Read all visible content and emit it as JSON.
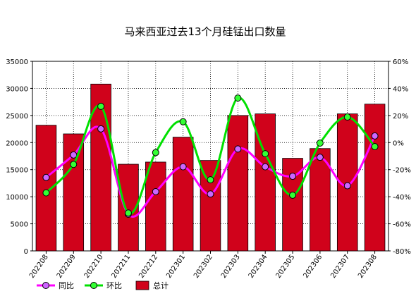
{
  "chart_data": {
    "type": "bar",
    "title": "马来西亚过去13个月硅锰出口数量",
    "categories": [
      "202208",
      "202209",
      "202210",
      "202211",
      "202212",
      "202301",
      "202302",
      "202303",
      "202304",
      "202305",
      "202306",
      "202307",
      "202308"
    ],
    "y_left": {
      "min": 0,
      "max": 35000,
      "step": 5000
    },
    "y_right": {
      "min": -80,
      "max": 80,
      "step": 20,
      "unit": "%"
    },
    "grid": true,
    "legend_position": "bottom-left",
    "series": [
      {
        "name": "总计",
        "kind": "bar",
        "axis": "left",
        "color": "#d0021b",
        "values": [
          23200,
          21600,
          30800,
          16000,
          16400,
          21000,
          16700,
          25000,
          25300,
          17100,
          18900,
          25300,
          27100
        ]
      },
      {
        "name": "同比",
        "kind": "line",
        "axis": "right",
        "color": "#ff00ff",
        "marker": "#cc66ff",
        "values": [
          -18,
          1,
          23,
          -49,
          -30,
          -9,
          -32,
          6,
          -9,
          -17,
          -1,
          -25,
          17
        ]
      },
      {
        "name": "环比",
        "kind": "line",
        "axis": "right",
        "color": "#00e000",
        "marker": "#33ff33",
        "values": [
          -31,
          -7,
          42,
          -48,
          3,
          29,
          -20,
          49,
          2,
          -33,
          11,
          33,
          8
        ]
      }
    ]
  }
}
